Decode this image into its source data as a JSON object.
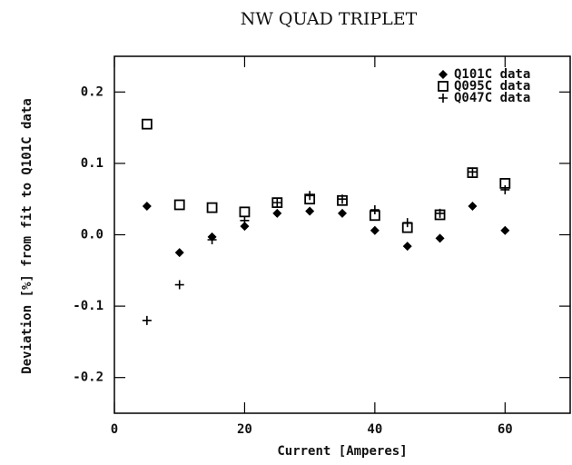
{
  "chart_data": {
    "type": "scatter",
    "title": "NW QUAD TRIPLET",
    "xlabel": "Current [Amperes]",
    "ylabel": "Deviation [%] from fit to Q101C data",
    "xlim": [
      0,
      70
    ],
    "xticks": [
      0,
      20,
      40,
      60
    ],
    "ylim": [
      -0.25,
      0.25
    ],
    "yticks": [
      -0.2,
      -0.1,
      {
        "value": 0,
        "label": "0.0"
      },
      0.1,
      0.2
    ],
    "legend": "top-right",
    "series": [
      {
        "name": "Q101C data",
        "color": "#000000",
        "marker": "diamond",
        "x": [
          5,
          10,
          15,
          20,
          25,
          30,
          35,
          40,
          45,
          50,
          55,
          60
        ],
        "values": [
          0.04,
          -0.025,
          -0.003,
          0.012,
          0.03,
          0.033,
          0.03,
          0.006,
          -0.016,
          -0.005,
          0.04,
          0.006
        ]
      },
      {
        "name": "Q095C data",
        "color": "#000000",
        "marker": "square",
        "x": [
          5,
          10,
          15,
          20,
          25,
          30,
          35,
          40,
          45,
          50,
          55,
          60
        ],
        "values": [
          0.155,
          0.042,
          0.038,
          0.032,
          0.045,
          0.05,
          0.048,
          0.027,
          0.01,
          0.028,
          0.087,
          0.072
        ]
      },
      {
        "name": "Q047C data",
        "color": "#000000",
        "marker": "plus",
        "x": [
          5,
          10,
          15,
          20,
          25,
          30,
          35,
          40,
          45,
          50,
          55,
          60
        ],
        "values": [
          -0.12,
          -0.07,
          -0.007,
          0.02,
          0.045,
          0.055,
          0.05,
          0.035,
          0.017,
          0.03,
          0.088,
          0.063
        ]
      }
    ]
  }
}
